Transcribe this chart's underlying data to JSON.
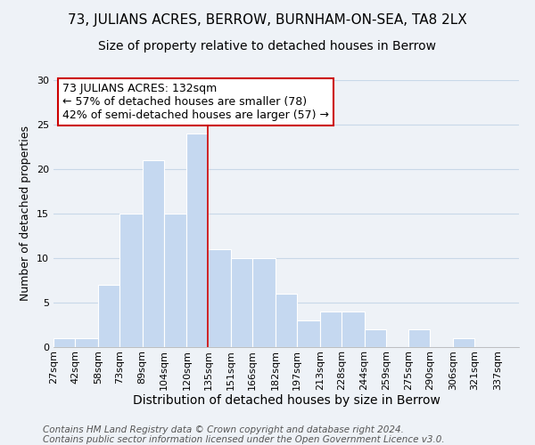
{
  "title": "73, JULIANS ACRES, BERROW, BURNHAM-ON-SEA, TA8 2LX",
  "subtitle": "Size of property relative to detached houses in Berrow",
  "xlabel": "Distribution of detached houses by size in Berrow",
  "ylabel": "Number of detached properties",
  "bar_values": [
    1,
    1,
    7,
    15,
    21,
    15,
    24,
    11,
    10,
    10,
    6,
    3,
    4,
    4,
    2,
    0,
    2,
    0,
    1,
    0,
    0
  ],
  "bin_edges": [
    27,
    42,
    58,
    73,
    89,
    104,
    120,
    135,
    151,
    166,
    182,
    197,
    213,
    228,
    244,
    259,
    275,
    290,
    306,
    321,
    337,
    352
  ],
  "x_tick_labels": [
    "27sqm",
    "42sqm",
    "58sqm",
    "73sqm",
    "89sqm",
    "104sqm",
    "120sqm",
    "135sqm",
    "151sqm",
    "166sqm",
    "182sqm",
    "197sqm",
    "213sqm",
    "228sqm",
    "244sqm",
    "259sqm",
    "275sqm",
    "290sqm",
    "306sqm",
    "321sqm",
    "337sqm"
  ],
  "bar_color": "#c5d8f0",
  "bar_edge_color": "#ffffff",
  "grid_color": "#c8d8e8",
  "background_color": "#eef2f7",
  "red_line_x": 135,
  "red_line_color": "#cc0000",
  "annotation_line1": "73 JULIANS ACRES: 132sqm",
  "annotation_line2": "← 57% of detached houses are smaller (78)",
  "annotation_line3": "42% of semi-detached houses are larger (57) →",
  "annotation_box_color": "#ffffff",
  "annotation_box_edge_color": "#cc0000",
  "ylim": [
    0,
    30
  ],
  "yticks": [
    0,
    5,
    10,
    15,
    20,
    25,
    30
  ],
  "footer_line1": "Contains HM Land Registry data © Crown copyright and database right 2024.",
  "footer_line2": "Contains public sector information licensed under the Open Government Licence v3.0.",
  "title_fontsize": 11,
  "subtitle_fontsize": 10,
  "xlabel_fontsize": 10,
  "ylabel_fontsize": 9,
  "tick_fontsize": 8,
  "annotation_fontsize": 9,
  "footer_fontsize": 7.5
}
